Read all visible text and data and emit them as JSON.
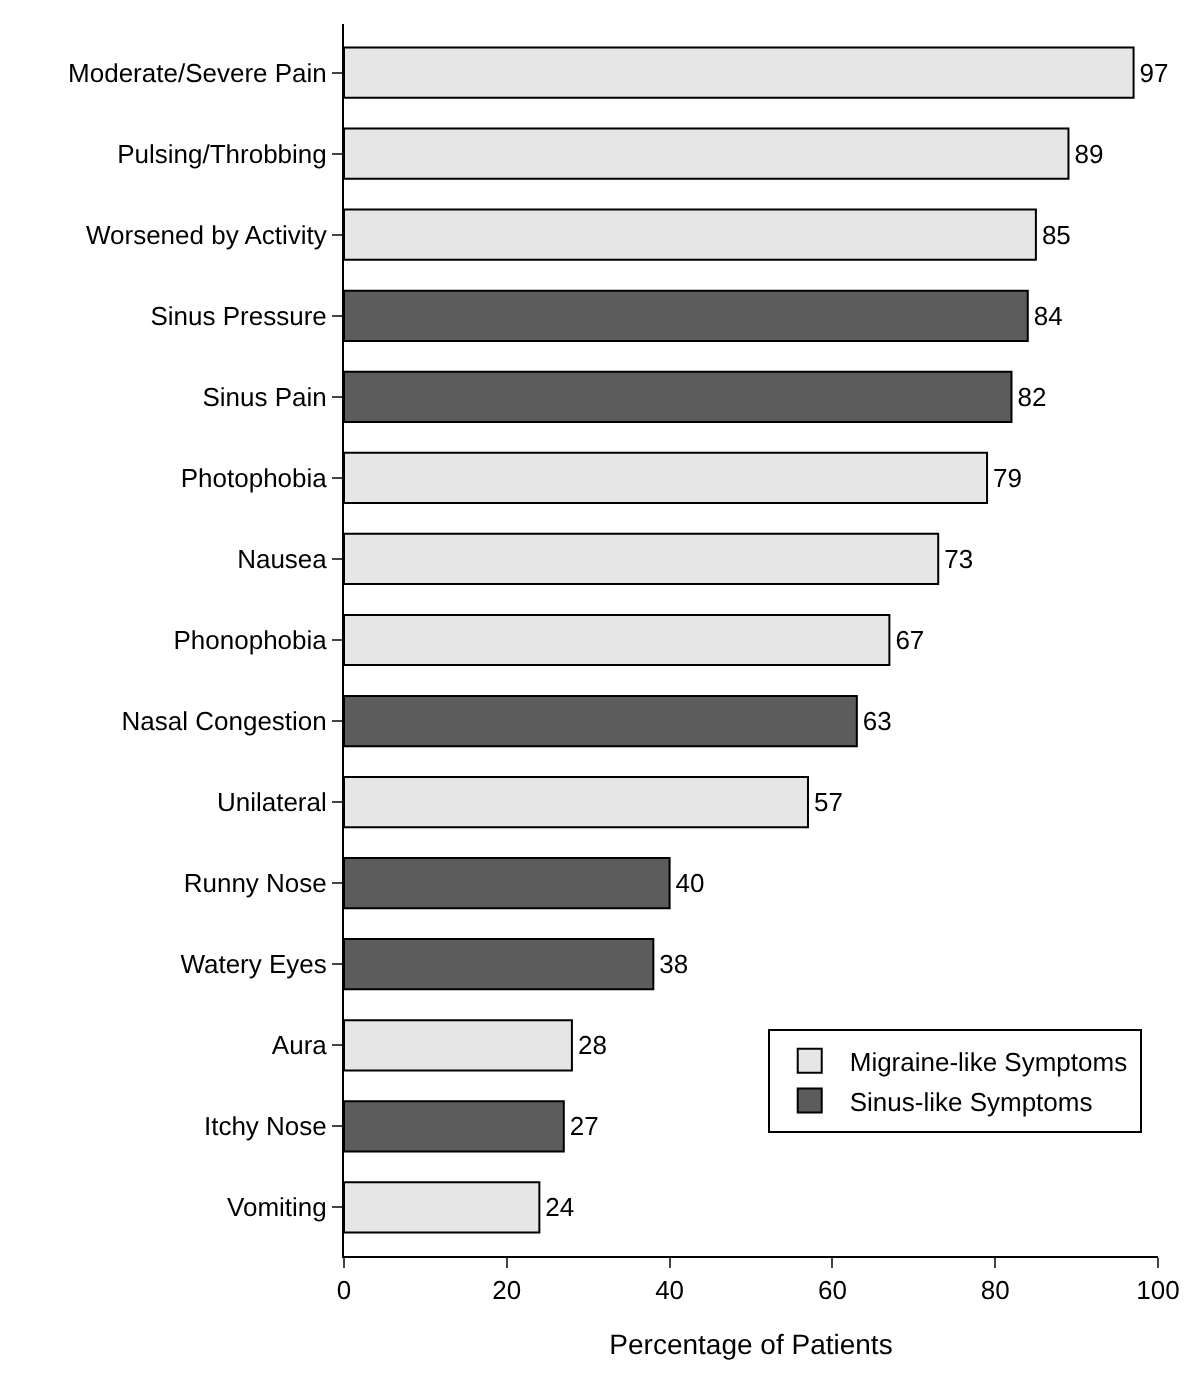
{
  "chart_data": {
    "type": "bar",
    "orientation": "horizontal",
    "xlabel": "Percentage of Patients",
    "categories": [
      "Moderate/Severe Pain",
      "Pulsing/Throbbing",
      "Worsened by Activity",
      "Sinus Pressure",
      "Sinus Pain",
      "Photophobia",
      "Nausea",
      "Phonophobia",
      "Nasal Congestion",
      "Unilateral",
      "Runny Nose",
      "Watery Eyes",
      "Aura",
      "Itchy Nose",
      "Vomiting"
    ],
    "series": [
      {
        "name": "Migraine-like Symptoms",
        "color": "#e6e6e6",
        "values": [
          97,
          89,
          85,
          null,
          null,
          79,
          73,
          67,
          null,
          57,
          null,
          null,
          28,
          null,
          24
        ]
      },
      {
        "name": "Sinus-like Symptoms",
        "color": "#5c5c5c",
        "values": [
          null,
          null,
          null,
          84,
          82,
          null,
          null,
          null,
          63,
          null,
          40,
          38,
          null,
          27,
          null
        ]
      }
    ],
    "xlim": [
      0,
      100
    ],
    "xticks": [
      0,
      20,
      40,
      60,
      80,
      100
    ],
    "data_labels": true,
    "legend": "bottom right"
  }
}
